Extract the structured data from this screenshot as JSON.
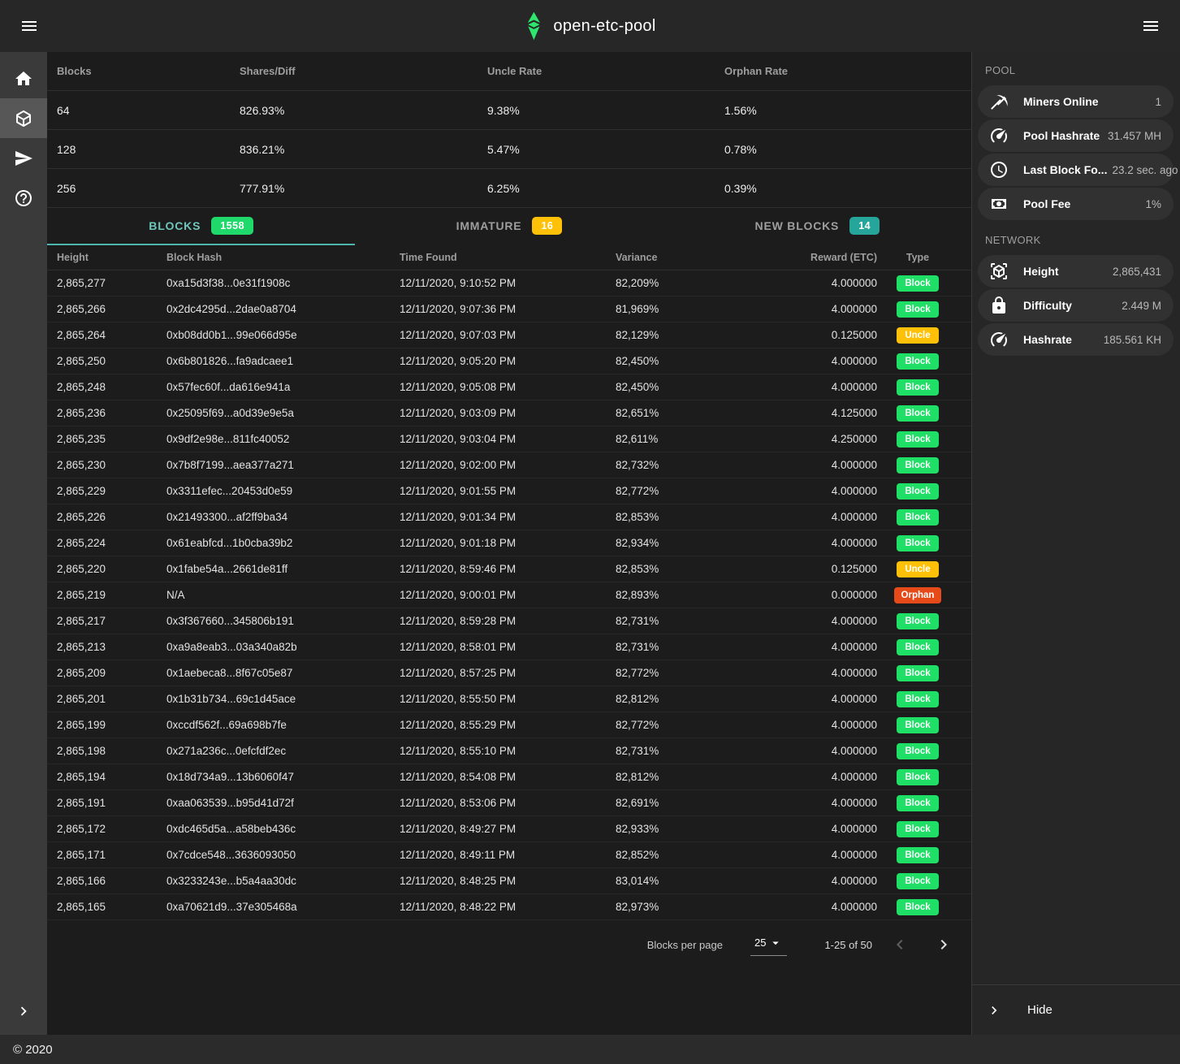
{
  "app_bar": {
    "title": "open-etc-pool"
  },
  "left_nav": {
    "items": [
      {
        "icon": "home-icon",
        "active": false
      },
      {
        "icon": "cube-icon",
        "active": true
      },
      {
        "icon": "send-icon",
        "active": false
      },
      {
        "icon": "help-icon",
        "active": false
      }
    ]
  },
  "stats_table": {
    "headers": [
      "Blocks",
      "Shares/Diff",
      "Uncle Rate",
      "Orphan Rate"
    ],
    "rows": [
      [
        "64",
        "826.93%",
        "9.38%",
        "1.56%"
      ],
      [
        "128",
        "836.21%",
        "5.47%",
        "0.78%"
      ],
      [
        "256",
        "777.91%",
        "6.25%",
        "0.39%"
      ]
    ]
  },
  "tabs": [
    {
      "label": "BLOCKS",
      "badge": "1558",
      "badge_color": "#1fd96a",
      "active": true
    },
    {
      "label": "IMMATURE",
      "badge": "16",
      "badge_color": "#ffc107",
      "active": false
    },
    {
      "label": "NEW BLOCKS",
      "badge": "14",
      "badge_color": "#26a69a",
      "active": false
    }
  ],
  "blocks_table": {
    "headers": [
      "Height",
      "Block Hash",
      "Time Found",
      "Variance",
      "Reward (ETC)",
      "Type"
    ],
    "rows": [
      {
        "height": "2,865,277",
        "hash": "0xa15d3f38...0e31f1908c",
        "time": "12/11/2020, 9:10:52 PM",
        "variance": "82,209%",
        "reward": "4.000000",
        "type": "Block"
      },
      {
        "height": "2,865,266",
        "hash": "0x2dc4295d...2dae0a8704",
        "time": "12/11/2020, 9:07:36 PM",
        "variance": "81,969%",
        "reward": "4.000000",
        "type": "Block"
      },
      {
        "height": "2,865,264",
        "hash": "0xb08dd0b1...99e066d95e",
        "time": "12/11/2020, 9:07:03 PM",
        "variance": "82,129%",
        "reward": "0.125000",
        "type": "Uncle"
      },
      {
        "height": "2,865,250",
        "hash": "0x6b801826...fa9adcaee1",
        "time": "12/11/2020, 9:05:20 PM",
        "variance": "82,450%",
        "reward": "4.000000",
        "type": "Block"
      },
      {
        "height": "2,865,248",
        "hash": "0x57fec60f...da616e941a",
        "time": "12/11/2020, 9:05:08 PM",
        "variance": "82,450%",
        "reward": "4.000000",
        "type": "Block"
      },
      {
        "height": "2,865,236",
        "hash": "0x25095f69...a0d39e9e5a",
        "time": "12/11/2020, 9:03:09 PM",
        "variance": "82,651%",
        "reward": "4.125000",
        "type": "Block"
      },
      {
        "height": "2,865,235",
        "hash": "0x9df2e98e...811fc40052",
        "time": "12/11/2020, 9:03:04 PM",
        "variance": "82,611%",
        "reward": "4.250000",
        "type": "Block"
      },
      {
        "height": "2,865,230",
        "hash": "0x7b8f7199...aea377a271",
        "time": "12/11/2020, 9:02:00 PM",
        "variance": "82,732%",
        "reward": "4.000000",
        "type": "Block"
      },
      {
        "height": "2,865,229",
        "hash": "0x3311efec...20453d0e59",
        "time": "12/11/2020, 9:01:55 PM",
        "variance": "82,772%",
        "reward": "4.000000",
        "type": "Block"
      },
      {
        "height": "2,865,226",
        "hash": "0x21493300...af2ff9ba34",
        "time": "12/11/2020, 9:01:34 PM",
        "variance": "82,853%",
        "reward": "4.000000",
        "type": "Block"
      },
      {
        "height": "2,865,224",
        "hash": "0x61eabfcd...1b0cba39b2",
        "time": "12/11/2020, 9:01:18 PM",
        "variance": "82,934%",
        "reward": "4.000000",
        "type": "Block"
      },
      {
        "height": "2,865,220",
        "hash": "0x1fabe54a...2661de81ff",
        "time": "12/11/2020, 8:59:46 PM",
        "variance": "82,853%",
        "reward": "0.125000",
        "type": "Uncle"
      },
      {
        "height": "2,865,219",
        "hash": "N/A",
        "time": "12/11/2020, 9:00:01 PM",
        "variance": "82,893%",
        "reward": "0.000000",
        "type": "Orphan"
      },
      {
        "height": "2,865,217",
        "hash": "0x3f367660...345806b191",
        "time": "12/11/2020, 8:59:28 PM",
        "variance": "82,731%",
        "reward": "4.000000",
        "type": "Block"
      },
      {
        "height": "2,865,213",
        "hash": "0xa9a8eab3...03a340a82b",
        "time": "12/11/2020, 8:58:01 PM",
        "variance": "82,731%",
        "reward": "4.000000",
        "type": "Block"
      },
      {
        "height": "2,865,209",
        "hash": "0x1aebeca8...8f67c05e87",
        "time": "12/11/2020, 8:57:25 PM",
        "variance": "82,772%",
        "reward": "4.000000",
        "type": "Block"
      },
      {
        "height": "2,865,201",
        "hash": "0x1b31b734...69c1d45ace",
        "time": "12/11/2020, 8:55:50 PM",
        "variance": "82,812%",
        "reward": "4.000000",
        "type": "Block"
      },
      {
        "height": "2,865,199",
        "hash": "0xccdf562f...69a698b7fe",
        "time": "12/11/2020, 8:55:29 PM",
        "variance": "82,772%",
        "reward": "4.000000",
        "type": "Block"
      },
      {
        "height": "2,865,198",
        "hash": "0x271a236c...0efcfdf2ec",
        "time": "12/11/2020, 8:55:10 PM",
        "variance": "82,731%",
        "reward": "4.000000",
        "type": "Block"
      },
      {
        "height": "2,865,194",
        "hash": "0x18d734a9...13b6060f47",
        "time": "12/11/2020, 8:54:08 PM",
        "variance": "82,812%",
        "reward": "4.000000",
        "type": "Block"
      },
      {
        "height": "2,865,191",
        "hash": "0xaa063539...b95d41d72f",
        "time": "12/11/2020, 8:53:06 PM",
        "variance": "82,691%",
        "reward": "4.000000",
        "type": "Block"
      },
      {
        "height": "2,865,172",
        "hash": "0xdc465d5a...a58beb436c",
        "time": "12/11/2020, 8:49:27 PM",
        "variance": "82,933%",
        "reward": "4.000000",
        "type": "Block"
      },
      {
        "height": "2,865,171",
        "hash": "0x7cdce548...3636093050",
        "time": "12/11/2020, 8:49:11 PM",
        "variance": "82,852%",
        "reward": "4.000000",
        "type": "Block"
      },
      {
        "height": "2,865,166",
        "hash": "0x3233243e...b5a4aa30dc",
        "time": "12/11/2020, 8:48:25 PM",
        "variance": "83,014%",
        "reward": "4.000000",
        "type": "Block"
      },
      {
        "height": "2,865,165",
        "hash": "0xa70621d9...37e305468a",
        "time": "12/11/2020, 8:48:22 PM",
        "variance": "82,973%",
        "reward": "4.000000",
        "type": "Block"
      }
    ]
  },
  "type_colors": {
    "Block": "#1fdf67",
    "Uncle": "#ffc107",
    "Orphan": "#e64a19"
  },
  "accent_colors": {
    "active_tab": "#4db6ac",
    "logo_green": "#2ee66e"
  },
  "pagination": {
    "label": "Blocks per page",
    "page_size": "25",
    "range": "1-25 of 50"
  },
  "right_panel": {
    "pool": {
      "title": "POOL",
      "items": [
        {
          "icon": "pickaxe-icon",
          "label": "Miners Online",
          "value": "1"
        },
        {
          "icon": "speedometer-icon",
          "label": "Pool Hashrate",
          "value": "31.457 MH"
        },
        {
          "icon": "clock-icon",
          "label": "Last Block Fo...",
          "value": "23.2 sec. ago"
        },
        {
          "icon": "cash-icon",
          "label": "Pool Fee",
          "value": "1%"
        }
      ]
    },
    "network": {
      "title": "NETWORK",
      "items": [
        {
          "icon": "cube-scan-icon",
          "label": "Height",
          "value": "2,865,431"
        },
        {
          "icon": "lock-icon",
          "label": "Difficulty",
          "value": "2.449 M"
        },
        {
          "icon": "speedometer-icon",
          "label": "Hashrate",
          "value": "185.561 KH"
        }
      ]
    },
    "hide_label": "Hide"
  },
  "footer": {
    "copyright": "© 2020"
  }
}
